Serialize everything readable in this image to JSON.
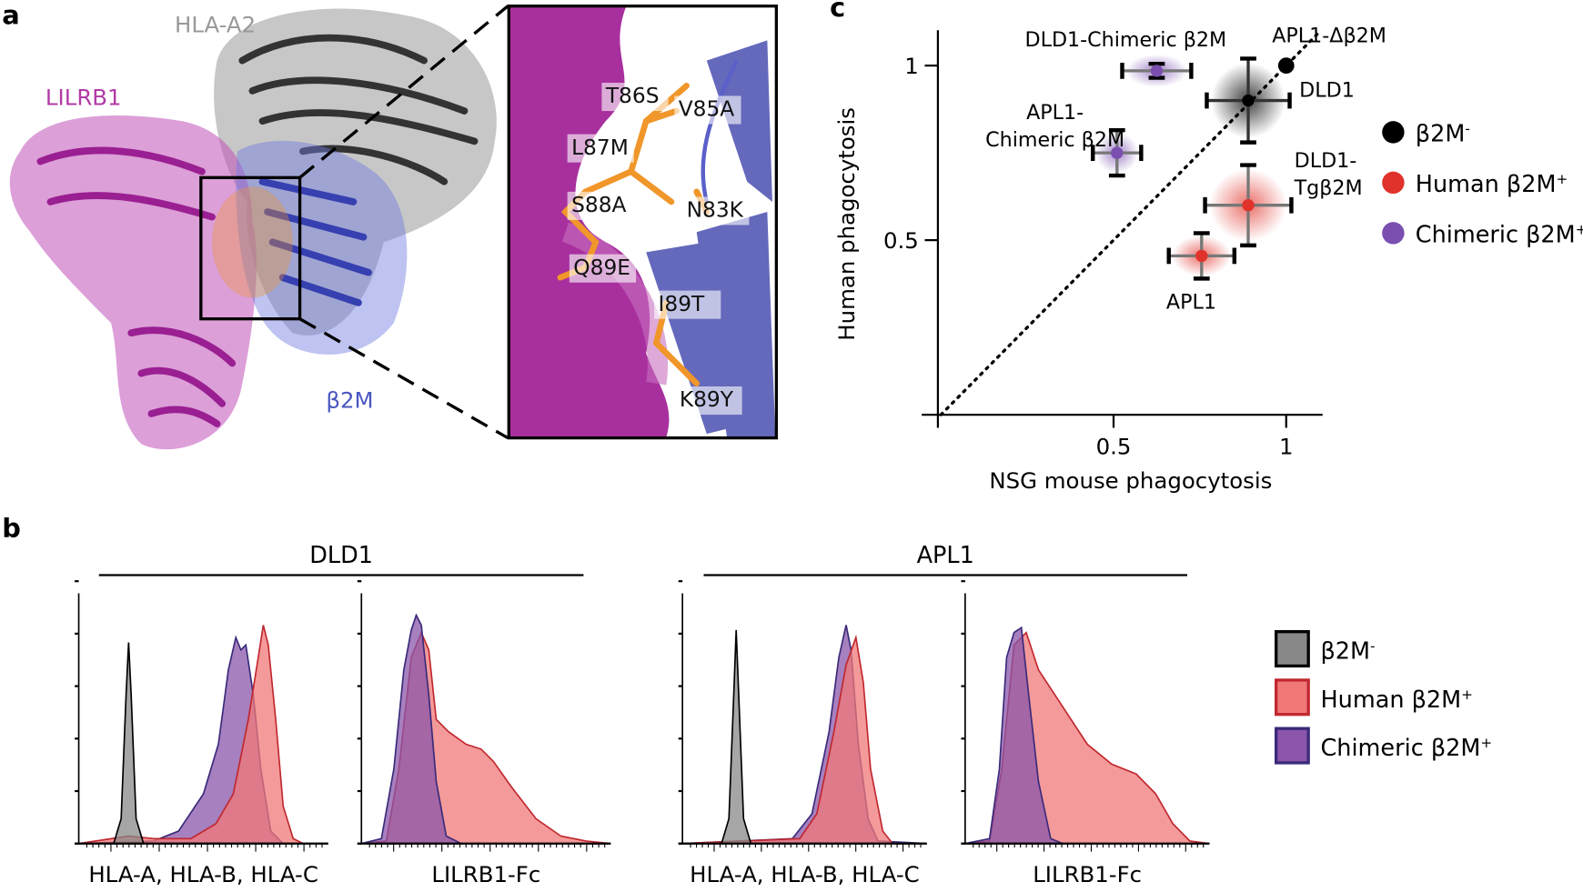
{
  "panel_labels": {
    "a": "a",
    "b": "b",
    "c": "c"
  },
  "panel_a": {
    "labels": {
      "hla": "HLA-A2",
      "lilrb1": "LILRB1",
      "b2m": "β2M"
    },
    "mutations": [
      "T86S",
      "V85A",
      "L87M",
      "S88A",
      "N83K",
      "Q89E",
      "I89T",
      "K89Y"
    ],
    "colors": {
      "lilrb1": "#b23aa6",
      "hla": "#555555",
      "b2m": "#4a56c0",
      "residues": "#f0962a"
    }
  },
  "chart_data": [
    {
      "type": "scatter",
      "xlabel": "NSG mouse phagocytosis",
      "ylabel": "Human phagocytosis",
      "xlim": [
        0,
        1.1
      ],
      "ylim": [
        0,
        1.1
      ],
      "xticks": [
        "0.5",
        "1"
      ],
      "yticks": [
        "0.5",
        "1"
      ],
      "grid": false,
      "diagonal": "dotted y=x",
      "legend_position": "right",
      "legend": [
        {
          "label": "β2M",
          "sup": "-",
          "color": "#000000"
        },
        {
          "label": "Human β2M",
          "sup": "+",
          "color": "#e0322a"
        },
        {
          "label": "Chimeric β2M",
          "sup": "+",
          "color": "#7a4fb0"
        }
      ],
      "points": [
        {
          "label": "APL1-Δβ2M",
          "group": 0,
          "x": 1.0,
          "y": 1.0,
          "xerr": 0,
          "yerr": 0
        },
        {
          "label": "DLD1",
          "group": 0,
          "x": 0.89,
          "y": 0.9,
          "xerr": 0.12,
          "yerr": 0.12
        },
        {
          "label": "DLD1-Chimeric β2M",
          "group": 2,
          "x": 0.625,
          "y": 0.985,
          "xerr": 0.1,
          "yerr": 0.02
        },
        {
          "label": "APL1-Chimeric β2M",
          "group": 2,
          "x": 0.51,
          "y": 0.75,
          "xerr": 0.07,
          "yerr": 0.065
        },
        {
          "label": "DLD1-Tgβ2M",
          "group": 1,
          "x": 0.89,
          "y": 0.6,
          "xerr": 0.125,
          "yerr": 0.115
        },
        {
          "label": "APL1",
          "group": 1,
          "x": 0.755,
          "y": 0.455,
          "xerr": 0.095,
          "yerr": 0.065
        }
      ]
    },
    {
      "type": "area",
      "groups": [
        "DLD1",
        "APL1"
      ],
      "legend_position": "right",
      "legend": [
        {
          "label": "β2M",
          "sup": "-",
          "fill": "#888888",
          "stroke": "#000000"
        },
        {
          "label": "Human β2M",
          "sup": "+",
          "fill": "#f07878",
          "stroke": "#c0282f"
        },
        {
          "label": "Chimeric β2M",
          "sup": "+",
          "fill": "#8a55aa",
          "stroke": "#3a2a7a"
        }
      ],
      "panels": [
        {
          "xlabel": "HLA-A, HLA-B, HLA-C",
          "series": [
            {
              "key": 2,
              "points": [
                [
                  0,
                  0
                ],
                [
                  0.3,
                  0.01
                ],
                [
                  0.4,
                  0.05
                ],
                [
                  0.5,
                  0.2
                ],
                [
                  0.56,
                  0.4
                ],
                [
                  0.58,
                  0.55
                ],
                [
                  0.6,
                  0.7
                ],
                [
                  0.63,
                  0.83
                ],
                [
                  0.65,
                  0.78
                ],
                [
                  0.67,
                  0.8
                ],
                [
                  0.7,
                  0.6
                ],
                [
                  0.73,
                  0.3
                ],
                [
                  0.77,
                  0.05
                ],
                [
                  0.82,
                  0
                ],
                [
                  1,
                  0
                ]
              ]
            },
            {
              "key": 1,
              "points": [
                [
                  0,
                  0
                ],
                [
                  0.2,
                  0.03
                ],
                [
                  0.3,
                  0.02
                ],
                [
                  0.45,
                  0.02
                ],
                [
                  0.55,
                  0.08
                ],
                [
                  0.62,
                  0.2
                ],
                [
                  0.68,
                  0.5
                ],
                [
                  0.72,
                  0.75
                ],
                [
                  0.74,
                  0.88
                ],
                [
                  0.76,
                  0.8
                ],
                [
                  0.79,
                  0.5
                ],
                [
                  0.82,
                  0.15
                ],
                [
                  0.86,
                  0.02
                ],
                [
                  0.9,
                  0
                ],
                [
                  1,
                  0
                ]
              ]
            },
            {
              "key": 0,
              "points": [
                [
                  0,
                  0
                ],
                [
                  0.14,
                  0
                ],
                [
                  0.17,
                  0.1
                ],
                [
                  0.19,
                  0.6
                ],
                [
                  0.2,
                  0.81
                ],
                [
                  0.21,
                  0.6
                ],
                [
                  0.23,
                  0.1
                ],
                [
                  0.26,
                  0
                ],
                [
                  1,
                  0
                ]
              ]
            }
          ]
        },
        {
          "xlabel": "LILRB1-Fc",
          "series": [
            {
              "key": 1,
              "points": [
                [
                  0,
                  0
                ],
                [
                  0.1,
                  0.01
                ],
                [
                  0.15,
                  0.3
                ],
                [
                  0.2,
                  0.75
                ],
                [
                  0.24,
                  0.85
                ],
                [
                  0.27,
                  0.78
                ],
                [
                  0.3,
                  0.5
                ],
                [
                  0.35,
                  0.45
                ],
                [
                  0.42,
                  0.4
                ],
                [
                  0.48,
                  0.38
                ],
                [
                  0.53,
                  0.33
                ],
                [
                  0.6,
                  0.23
                ],
                [
                  0.7,
                  0.1
                ],
                [
                  0.8,
                  0.03
                ],
                [
                  0.9,
                  0.01
                ],
                [
                  1,
                  0
                ]
              ]
            },
            {
              "key": 2,
              "points": [
                [
                  0,
                  0
                ],
                [
                  0.08,
                  0.02
                ],
                [
                  0.13,
                  0.3
                ],
                [
                  0.17,
                  0.7
                ],
                [
                  0.2,
                  0.86
                ],
                [
                  0.22,
                  0.92
                ],
                [
                  0.24,
                  0.88
                ],
                [
                  0.27,
                  0.6
                ],
                [
                  0.3,
                  0.25
                ],
                [
                  0.34,
                  0.03
                ],
                [
                  0.4,
                  0
                ],
                [
                  1,
                  0
                ]
              ]
            }
          ]
        },
        {
          "xlabel": "HLA-A, HLA-B, HLA-C",
          "series": [
            {
              "key": 2,
              "points": [
                [
                  0,
                  0
                ],
                [
                  0.45,
                  0.02
                ],
                [
                  0.53,
                  0.12
                ],
                [
                  0.6,
                  0.45
                ],
                [
                  0.64,
                  0.75
                ],
                [
                  0.67,
                  0.88
                ],
                [
                  0.69,
                  0.78
                ],
                [
                  0.72,
                  0.4
                ],
                [
                  0.76,
                  0.1
                ],
                [
                  0.8,
                  0.01
                ],
                [
                  1,
                  0
                ]
              ]
            },
            {
              "key": 1,
              "points": [
                [
                  0,
                  0
                ],
                [
                  0.48,
                  0.02
                ],
                [
                  0.55,
                  0.12
                ],
                [
                  0.62,
                  0.45
                ],
                [
                  0.67,
                  0.72
                ],
                [
                  0.71,
                  0.83
                ],
                [
                  0.74,
                  0.65
                ],
                [
                  0.77,
                  0.3
                ],
                [
                  0.82,
                  0.05
                ],
                [
                  0.86,
                  0
                ],
                [
                  1,
                  0
                ]
              ]
            },
            {
              "key": 0,
              "points": [
                [
                  0,
                  0
                ],
                [
                  0.16,
                  0
                ],
                [
                  0.19,
                  0.1
                ],
                [
                  0.21,
                  0.6
                ],
                [
                  0.22,
                  0.86
                ],
                [
                  0.23,
                  0.6
                ],
                [
                  0.25,
                  0.1
                ],
                [
                  0.28,
                  0
                ],
                [
                  1,
                  0
                ]
              ]
            }
          ]
        },
        {
          "xlabel": "LILRB1-Fc",
          "series": [
            {
              "key": 1,
              "points": [
                [
                  0,
                  0
                ],
                [
                  0.1,
                  0.01
                ],
                [
                  0.15,
                  0.3
                ],
                [
                  0.2,
                  0.8
                ],
                [
                  0.25,
                  0.85
                ],
                [
                  0.3,
                  0.7
                ],
                [
                  0.4,
                  0.55
                ],
                [
                  0.5,
                  0.4
                ],
                [
                  0.6,
                  0.32
                ],
                [
                  0.7,
                  0.28
                ],
                [
                  0.78,
                  0.2
                ],
                [
                  0.85,
                  0.08
                ],
                [
                  0.92,
                  0.01
                ],
                [
                  1,
                  0
                ]
              ]
            },
            {
              "key": 2,
              "points": [
                [
                  0,
                  0
                ],
                [
                  0.1,
                  0.02
                ],
                [
                  0.14,
                  0.3
                ],
                [
                  0.17,
                  0.75
                ],
                [
                  0.2,
                  0.85
                ],
                [
                  0.23,
                  0.87
                ],
                [
                  0.26,
                  0.6
                ],
                [
                  0.3,
                  0.25
                ],
                [
                  0.35,
                  0.02
                ],
                [
                  0.4,
                  0
                ],
                [
                  1,
                  0
                ]
              ]
            }
          ]
        }
      ]
    }
  ]
}
